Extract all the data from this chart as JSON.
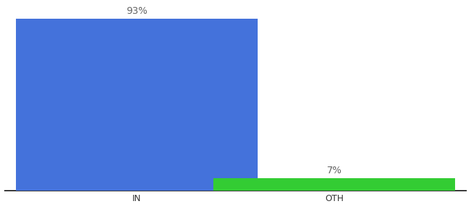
{
  "categories": [
    "IN",
    "OTH"
  ],
  "values": [
    93,
    7
  ],
  "bar_colors": [
    "#4472db",
    "#33cc33"
  ],
  "labels": [
    "93%",
    "7%"
  ],
  "ylim": [
    0,
    100
  ],
  "background_color": "#ffffff",
  "label_fontsize": 10,
  "tick_fontsize": 9,
  "bar_width": 0.55,
  "x_positions": [
    0.3,
    0.75
  ],
  "xlim": [
    0.0,
    1.05
  ]
}
